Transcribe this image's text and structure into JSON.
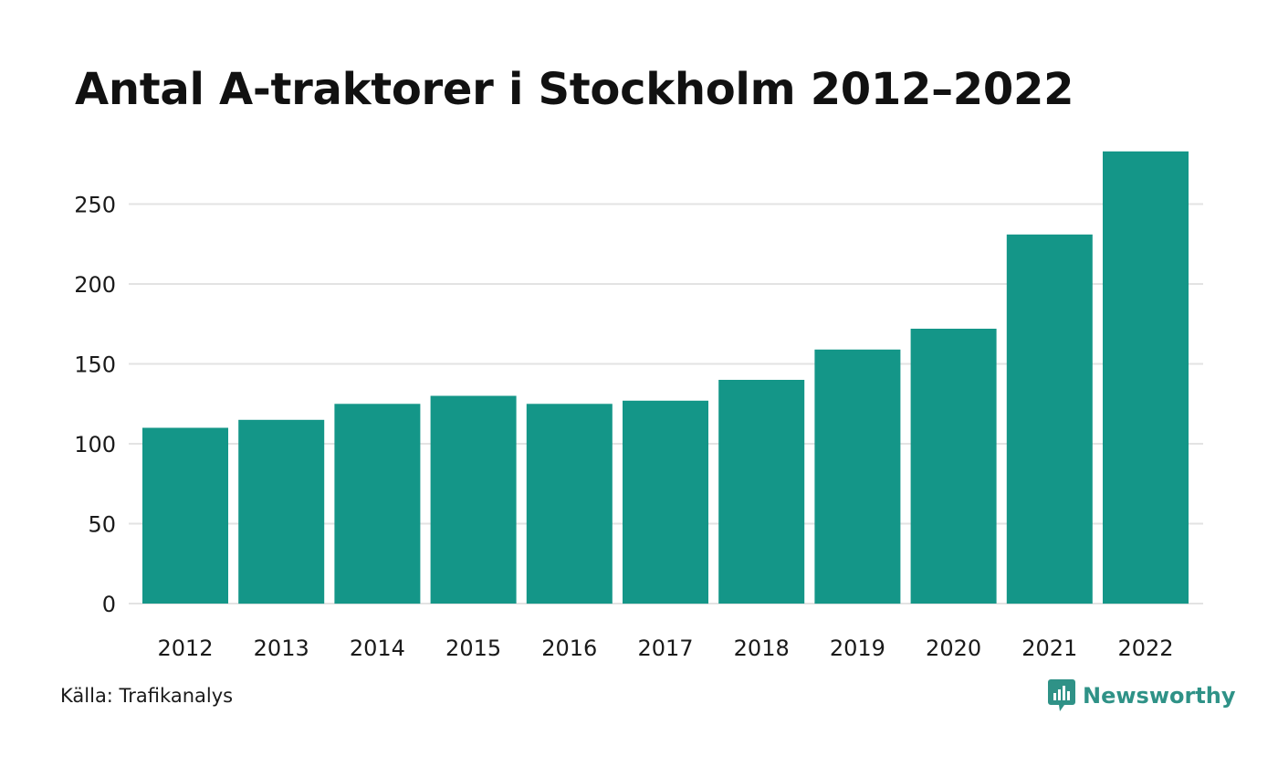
{
  "title": "Antal A-traktorer i Stockholm 2012–2022",
  "source": "Källa: Trafikanalys",
  "brand": {
    "name": "Newsworthy",
    "color": "#2f9287"
  },
  "colors": {
    "bar": "#149688",
    "grid": "#e3e3e3",
    "text": "#1a1a1a"
  },
  "chart_data": {
    "type": "bar",
    "title": "Antal A-traktorer i Stockholm 2012–2022",
    "xlabel": "",
    "ylabel": "",
    "categories": [
      "2012",
      "2013",
      "2014",
      "2015",
      "2016",
      "2017",
      "2018",
      "2019",
      "2020",
      "2021",
      "2022"
    ],
    "values": [
      110,
      115,
      125,
      130,
      125,
      127,
      140,
      159,
      172,
      231,
      283
    ],
    "ylim": [
      0,
      300
    ],
    "yticks": [
      0,
      50,
      100,
      150,
      200,
      250
    ],
    "grid": true,
    "legend": "none"
  }
}
